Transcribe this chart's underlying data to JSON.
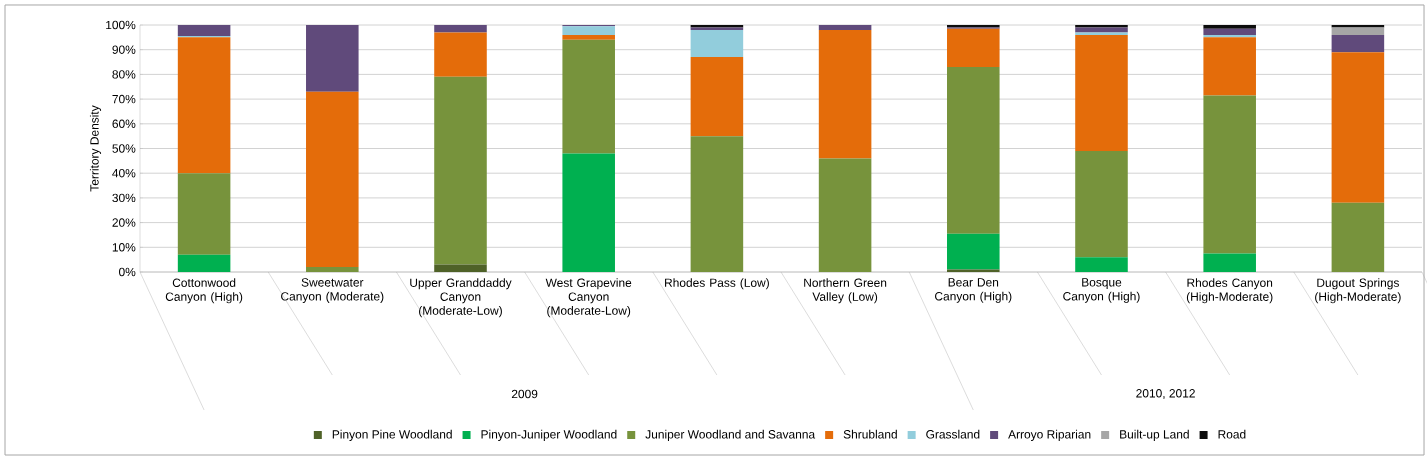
{
  "chart_data": {
    "type": "bar",
    "stacked": true,
    "ylabel": "Territory Density",
    "categories": [
      "Cottonwood Canyon (High)",
      "Sweetwater Canyon (Moderate)",
      "Upper Granddaddy Canyon (Moderate-Low)",
      "West Grapevine Canyon (Moderate-Low)",
      "Rhodes Pass (Low)",
      "Northern Green Valley (Low)",
      "Bear Den Canyon (High)",
      "Bosque Canyon (High)",
      "Rhodes Canyon (High-Moderate)",
      "Dugout Springs (High-Moderate)"
    ],
    "series": [
      {
        "name": "Pinyon Pine Woodland",
        "color": "#4f6228",
        "values": [
          0,
          0,
          3,
          0,
          0,
          0,
          1,
          0,
          0,
          0
        ]
      },
      {
        "name": "Pinyon-Juniper Woodland",
        "color": "#00b050",
        "values": [
          7,
          0,
          0,
          48,
          0,
          0,
          14.5,
          6,
          7.5,
          0
        ]
      },
      {
        "name": "Juniper Woodland and Savanna",
        "color": "#77933c",
        "values": [
          33,
          2,
          76,
          46,
          55,
          46,
          67.5,
          43,
          64,
          28
        ]
      },
      {
        "name": "Shrubland",
        "color": "#e46c0a",
        "values": [
          55,
          71,
          18,
          2,
          32,
          52,
          15.5,
          47,
          23.5,
          61
        ]
      },
      {
        "name": "Grassland",
        "color": "#92cddc",
        "values": [
          0.5,
          0,
          0,
          3.5,
          11,
          0,
          0,
          1,
          1,
          0
        ]
      },
      {
        "name": "Arroyo Riparian",
        "color": "#604a7b",
        "values": [
          4.5,
          27,
          3,
          0.5,
          1,
          2,
          0.5,
          2,
          2.5,
          7
        ]
      },
      {
        "name": "Built-up Land",
        "color": "#a6a6a6",
        "values": [
          0,
          0,
          0,
          0,
          0,
          0,
          0,
          0,
          0,
          3
        ]
      },
      {
        "name": "Road",
        "color": "#0d0d0d",
        "values": [
          0,
          0,
          0,
          0,
          1,
          0,
          1,
          1,
          1.5,
          1
        ]
      }
    ],
    "ylim": [
      0,
      100
    ],
    "yticks": [
      {
        "value": 0,
        "label": "0%"
      },
      {
        "value": 10,
        "label": "10%"
      },
      {
        "value": 20,
        "label": "20%"
      },
      {
        "value": 30,
        "label": "30%"
      },
      {
        "value": 40,
        "label": "40%"
      },
      {
        "value": 50,
        "label": "50%"
      },
      {
        "value": 60,
        "label": "60%"
      },
      {
        "value": 70,
        "label": "70%"
      },
      {
        "value": 80,
        "label": "80%"
      },
      {
        "value": 90,
        "label": "90%"
      },
      {
        "value": 100,
        "label": "100%"
      }
    ],
    "annotations": [
      "2009",
      "2010, 2012"
    ],
    "grid": "y",
    "legend": "bottom"
  }
}
